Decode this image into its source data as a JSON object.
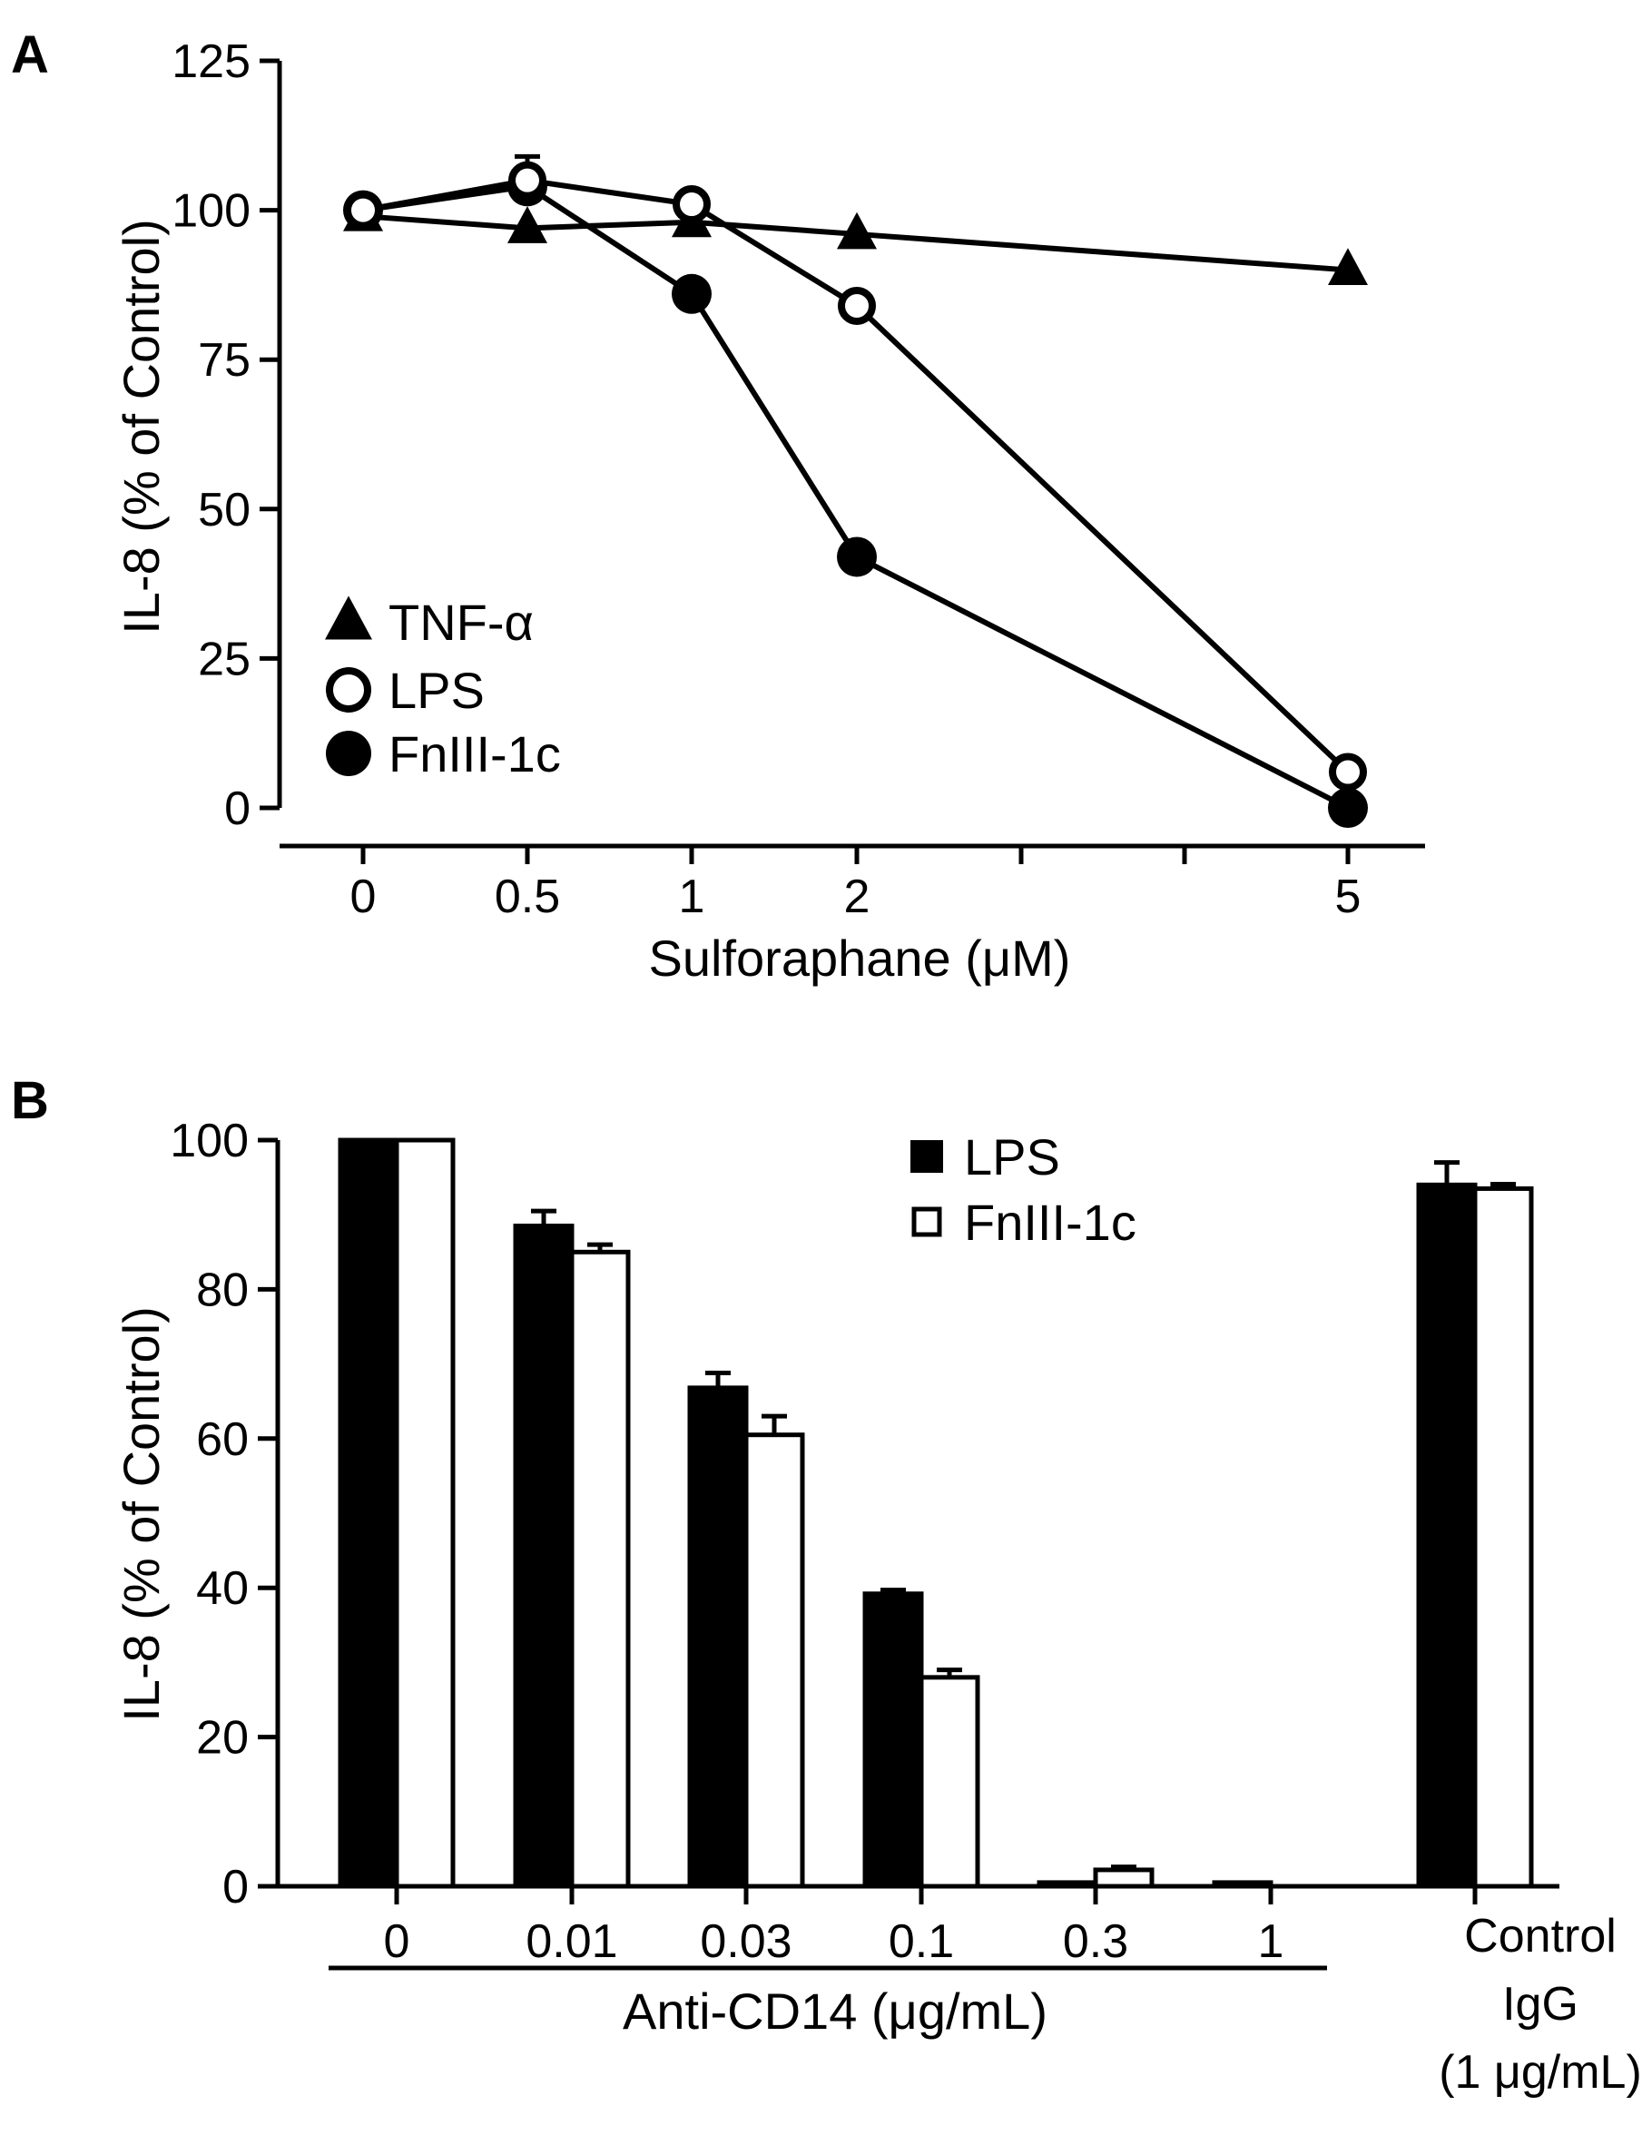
{
  "chart_data": [
    {
      "panel_label": "A",
      "type": "line",
      "xlabel": "Sulforaphane (μM)",
      "ylabel": "IL-8 (% of Control)",
      "x_tick_labels": [
        "0",
        "0.5",
        "1",
        "2",
        "5"
      ],
      "y_tick_labels": [
        "0",
        "25",
        "50",
        "75",
        "100",
        "125"
      ],
      "ylim": [
        0,
        125
      ],
      "legend_position": "bottom-left",
      "series": [
        {
          "name": "TNF-α",
          "marker": "triangle",
          "values": [
            99,
            97,
            98,
            96,
            90
          ]
        },
        {
          "name": "LPS",
          "marker": "open-circle",
          "values": [
            100,
            105,
            101,
            84,
            6
          ]
        },
        {
          "name": "FnIII-1c",
          "marker": "filled-circle",
          "values": [
            100,
            104,
            86,
            42,
            0
          ]
        }
      ],
      "errors": {
        "LPS": [
          1,
          4,
          1,
          1,
          1
        ]
      }
    },
    {
      "panel_label": "B",
      "type": "bar",
      "xlabel": "Anti-CD14 (μg/mL)",
      "ylabel": "IL-8 (% of Control)",
      "categories": [
        "0",
        "0.01",
        "0.03",
        "0.1",
        "0.3",
        "1",
        "Control IgG (1 μg/mL)"
      ],
      "category_labels": [
        "0",
        "0.01",
        "0.03",
        "0.1",
        "0.3",
        "1"
      ],
      "control_label_lines": [
        "Control",
        "IgG",
        "(1 μg/mL)"
      ],
      "y_tick_labels": [
        "0",
        "20",
        "40",
        "60",
        "80",
        "100"
      ],
      "ylim": [
        0,
        100
      ],
      "legend_position": "top-center",
      "series": [
        {
          "name": "LPS",
          "fill": "#000000",
          "values": [
            100,
            88.5,
            66.8,
            39.2,
            0.5,
            0.5,
            94
          ],
          "errors": [
            0,
            2,
            2,
            0.5,
            0.2,
            0.2,
            3
          ]
        },
        {
          "name": "FnIII-1c",
          "fill": "#ffffff",
          "values": [
            100,
            85,
            60.5,
            28,
            2.2,
            null,
            93.5
          ],
          "errors": [
            0,
            1,
            2.5,
            1,
            0.4,
            0,
            0.6
          ]
        }
      ]
    }
  ]
}
